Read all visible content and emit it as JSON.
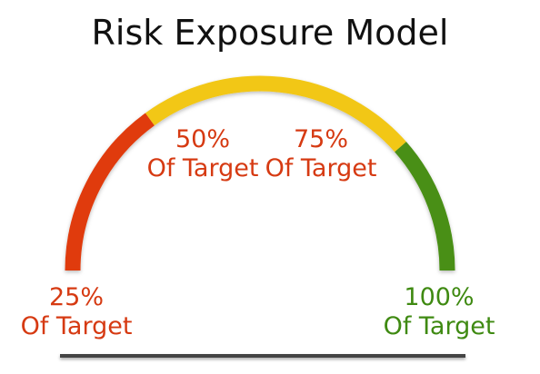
{
  "title": "Risk Exposure Model",
  "gauge": {
    "segments": [
      {
        "name": "red",
        "from_pct": 0,
        "to_pct": 0.3,
        "color": "#e03a0a"
      },
      {
        "name": "yellow",
        "from_pct": 0.3,
        "to_pct": 0.77,
        "color": "#f2c716"
      },
      {
        "name": "green",
        "from_pct": 0.77,
        "to_pct": 1.0,
        "color": "#4a8f12"
      }
    ]
  },
  "labels": {
    "l25": {
      "pct": "25%",
      "text": "Of Target",
      "color": "#d63a12"
    },
    "l50": {
      "pct": "50%",
      "text": "Of Target",
      "color": "#d63a12"
    },
    "l75": {
      "pct": "75%",
      "text": "Of Target",
      "color": "#d63a12"
    },
    "l100": {
      "pct": "100%",
      "text": "Of Target",
      "color": "#3f8a12"
    }
  }
}
